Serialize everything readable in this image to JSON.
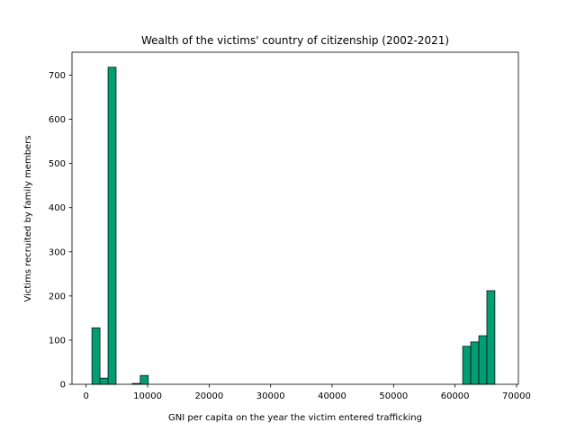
{
  "chart_data": {
    "type": "bar",
    "title": "Wealth of the victims' country of citizenship (2002-2021)",
    "xlabel": "GNI per capita on the year the victim entered trafficking",
    "ylabel": "Victims recruited by family members",
    "xlim": [
      -2300,
      70300
    ],
    "ylim": [
      0,
      752
    ],
    "xticks": [
      0,
      10000,
      20000,
      30000,
      40000,
      50000,
      60000,
      70000
    ],
    "yticks": [
      0,
      100,
      200,
      300,
      400,
      500,
      600,
      700
    ],
    "bar_color": "#009e73",
    "edge_color": "#000000",
    "grid": false,
    "bins": [
      {
        "x0": 940,
        "x1": 2250,
        "value": 128
      },
      {
        "x0": 2250,
        "x1": 3560,
        "value": 14
      },
      {
        "x0": 3560,
        "x1": 4870,
        "value": 718
      },
      {
        "x0": 7490,
        "x1": 8800,
        "value": 2
      },
      {
        "x0": 8800,
        "x1": 10110,
        "value": 20
      },
      {
        "x0": 61240,
        "x1": 62550,
        "value": 86
      },
      {
        "x0": 62550,
        "x1": 63860,
        "value": 96
      },
      {
        "x0": 63860,
        "x1": 65170,
        "value": 110
      },
      {
        "x0": 65170,
        "x1": 66480,
        "value": 212
      }
    ]
  }
}
